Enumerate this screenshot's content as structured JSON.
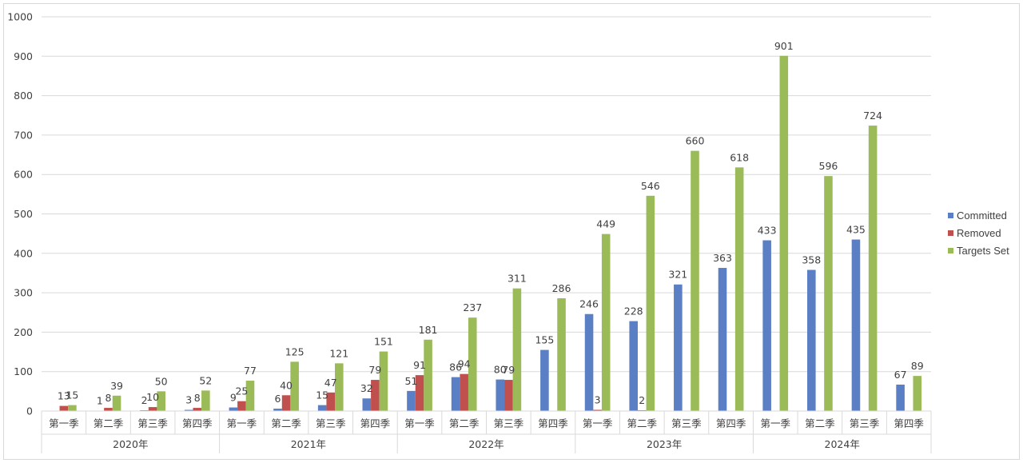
{
  "chart_data": {
    "type": "bar",
    "ylim": [
      0,
      1000
    ],
    "yticks": [
      0,
      100,
      200,
      300,
      400,
      500,
      600,
      700,
      800,
      900,
      1000
    ],
    "groups": [
      {
        "label": "2020年",
        "categories": [
          "第一季",
          "第二季",
          "第三季",
          "第四季"
        ]
      },
      {
        "label": "2021年",
        "categories": [
          "第一季",
          "第二季",
          "第三季",
          "第四季"
        ]
      },
      {
        "label": "2022年",
        "categories": [
          "第一季",
          "第二季",
          "第三季",
          "第四季"
        ]
      },
      {
        "label": "2023年",
        "categories": [
          "第一季",
          "第二季",
          "第三季",
          "第四季"
        ]
      },
      {
        "label": "2024年",
        "categories": [
          "第一季",
          "第二季",
          "第三季",
          "第四季"
        ]
      }
    ],
    "series": [
      {
        "name": "Committed",
        "color": "#5b7fc4",
        "values": [
          null,
          1,
          2,
          3,
          9,
          6,
          15,
          32,
          51,
          86,
          80,
          155,
          246,
          228,
          321,
          363,
          433,
          358,
          435,
          67
        ]
      },
      {
        "name": "Removed",
        "color": "#c0504d",
        "values": [
          13,
          8,
          10,
          8,
          25,
          40,
          47,
          79,
          91,
          94,
          79,
          null,
          3,
          2,
          null,
          null,
          null,
          null,
          null,
          null
        ]
      },
      {
        "name": "Targets Set",
        "color": "#9bbb59",
        "values": [
          15,
          39,
          50,
          52,
          77,
          125,
          121,
          151,
          181,
          237,
          311,
          286,
          449,
          546,
          660,
          618,
          901,
          596,
          724,
          89
        ]
      }
    ],
    "legend_position": "right",
    "grid": true
  }
}
